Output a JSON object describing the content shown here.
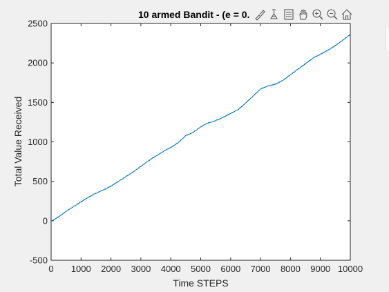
{
  "figure": {
    "title": "10 armed Bandit - (e = 0."
  },
  "toolbar": {
    "icons": [
      "brush-icon",
      "data-tips-icon",
      "legend-toggle-icon",
      "pan-icon",
      "zoom-in-icon",
      "zoom-out-icon",
      "home-icon"
    ]
  },
  "chart_data": {
    "type": "line",
    "title": "10 armed Bandit - (e = 0.",
    "xlabel": "Time STEPS",
    "ylabel": "Total Value Received",
    "xlim": [
      0,
      10000
    ],
    "ylim": [
      -500,
      2500
    ],
    "xticks": [
      "0",
      "1000",
      "2000",
      "3000",
      "4000",
      "5000",
      "6000",
      "7000",
      "8000",
      "9000",
      "10000"
    ],
    "yticks": [
      "-500",
      "0",
      "500",
      "1000",
      "1500",
      "2000",
      "2500"
    ],
    "grid": false,
    "line_color": "#0072BD",
    "series": [
      {
        "x": [
          0,
          250,
          500,
          750,
          1000,
          1250,
          1500,
          1750,
          2000,
          2250,
          2500,
          2750,
          3000,
          3250,
          3500,
          3750,
          4000,
          4250,
          4500,
          4750,
          5000,
          5250,
          5500,
          5750,
          6000,
          6250,
          6500,
          6750,
          7000,
          7250,
          7500,
          7750,
          8000,
          8250,
          8500,
          8750,
          9000,
          9250,
          9500,
          9750,
          10000
        ],
        "values": [
          -5,
          50,
          120,
          180,
          240,
          300,
          350,
          390,
          440,
          500,
          560,
          620,
          690,
          760,
          820,
          880,
          930,
          990,
          1080,
          1120,
          1190,
          1240,
          1270,
          1310,
          1360,
          1410,
          1490,
          1580,
          1670,
          1710,
          1730,
          1780,
          1850,
          1920,
          1990,
          2060,
          2110,
          2160,
          2220,
          2290,
          2360
        ]
      }
    ]
  }
}
